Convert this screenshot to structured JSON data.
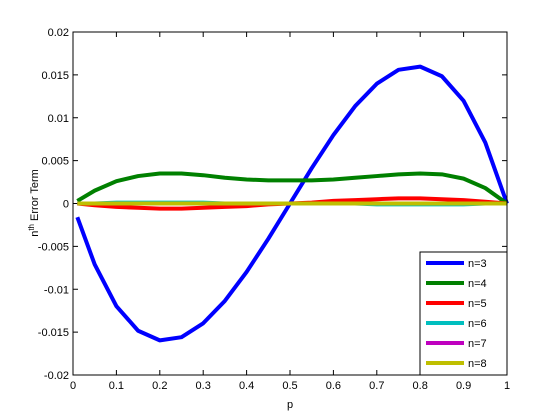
{
  "chart_data": {
    "type": "line",
    "xlabel": "p",
    "ylabel_parts": [
      "n",
      "th",
      " Error Term"
    ],
    "x": [
      0.01,
      0.05,
      0.1,
      0.15,
      0.2,
      0.25,
      0.3,
      0.35,
      0.4,
      0.45,
      0.5,
      0.55,
      0.6,
      0.65,
      0.7,
      0.75,
      0.8,
      0.85,
      0.9,
      0.95,
      1.0
    ],
    "series": [
      {
        "name": "n=3",
        "color": "#0000ff",
        "values": [
          -0.0016,
          -0.00711,
          -0.01197,
          -0.01484,
          -0.01596,
          -0.01559,
          -0.01397,
          -0.01135,
          -0.00798,
          -0.00412,
          0,
          0.00412,
          0.00798,
          0.01135,
          0.01397,
          0.01559,
          0.01596,
          0.01484,
          0.01197,
          0.00711,
          0
        ]
      },
      {
        "name": "n=4",
        "color": "#008000",
        "values": [
          0.0003,
          0.0015,
          0.0026,
          0.0032,
          0.0035,
          0.0035,
          0.0033,
          0.003,
          0.0028,
          0.0027,
          0.0027,
          0.0027,
          0.0028,
          0.003,
          0.0032,
          0.0034,
          0.0035,
          0.0034,
          0.0029,
          0.0018,
          0
        ]
      },
      {
        "name": "n=5",
        "color": "#ff0000",
        "values": [
          0,
          -0.0002,
          -0.0004,
          -0.0005,
          -0.0006,
          -0.0006,
          -0.0005,
          -0.0004,
          -0.0003,
          -0.0001,
          0,
          0.0001,
          0.0003,
          0.0004,
          0.0005,
          0.0006,
          0.0006,
          0.0005,
          0.0004,
          0.0002,
          0
        ]
      },
      {
        "name": "n=6",
        "color": "#00bfbf",
        "values": [
          0,
          0,
          0.0001,
          0.0001,
          0.0001,
          0.0001,
          0.0001,
          0,
          0,
          0,
          0,
          0,
          0,
          0,
          -0.0001,
          -0.0001,
          -0.0001,
          -0.0001,
          -0.0001,
          0,
          0
        ]
      },
      {
        "name": "n=7",
        "color": "#bf00bf",
        "values": [
          0,
          0,
          0,
          0,
          0,
          0,
          0,
          0,
          0,
          0,
          0,
          0,
          0,
          0,
          0,
          0,
          0,
          0,
          0,
          0,
          0
        ]
      },
      {
        "name": "n=8",
        "color": "#bfbf00",
        "values": [
          0,
          0,
          0,
          0,
          0,
          0,
          0,
          0,
          0,
          0,
          0,
          0,
          0,
          0,
          0,
          0,
          0,
          0,
          0,
          0,
          0
        ]
      }
    ],
    "xlim": [
      0,
      1
    ],
    "xticks": [
      0,
      0.1,
      0.2,
      0.3,
      0.4,
      0.5,
      0.6,
      0.7,
      0.8,
      0.9,
      1
    ],
    "ylim": [
      -0.02,
      0.02
    ],
    "yticks": [
      -0.02,
      -0.015,
      -0.01,
      -0.005,
      0,
      0.005,
      0.01,
      0.015,
      0.02
    ],
    "legend": "lower right",
    "grid": false
  }
}
